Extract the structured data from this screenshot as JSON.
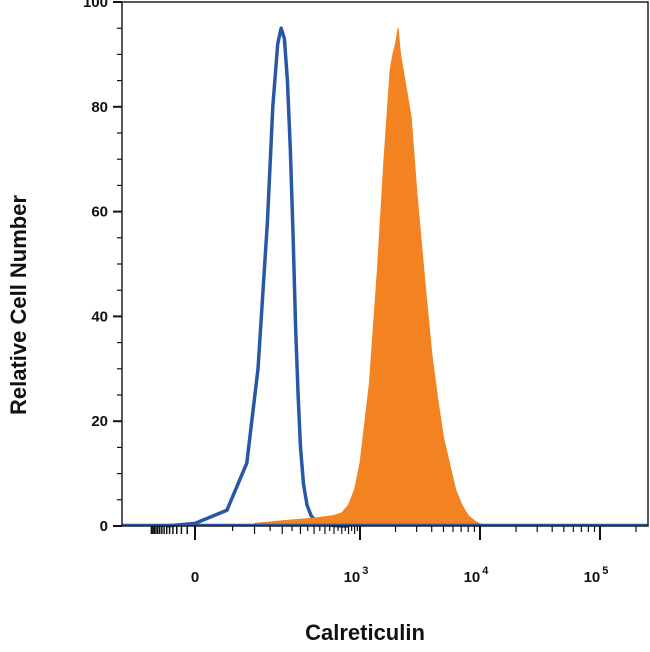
{
  "chart_data": {
    "type": "area",
    "title": "",
    "xlabel": "Calreticulin",
    "ylabel": "Relative Cell Number",
    "x_scale": "biexponential (log with linear region near 0)",
    "xlim": [
      -300,
      200000
    ],
    "ylim": [
      0,
      100
    ],
    "grid": false,
    "legend": "none",
    "x_ticks": [
      {
        "value": 0,
        "label": "0",
        "exp": ""
      },
      {
        "value": 1000,
        "label": "10",
        "exp": "3"
      },
      {
        "value": 10000,
        "label": "10",
        "exp": "4"
      },
      {
        "value": 100000,
        "label": "10",
        "exp": "5"
      }
    ],
    "y_ticks": [
      {
        "value": 0,
        "label": "0"
      },
      {
        "value": 20,
        "label": "20"
      },
      {
        "value": 40,
        "label": "40"
      },
      {
        "value": 60,
        "label": "60"
      },
      {
        "value": 80,
        "label": "80"
      },
      {
        "value": 100,
        "label": "100"
      }
    ],
    "series": [
      {
        "style": "outline",
        "color": "#2857a5",
        "x": [
          -120,
          0,
          40,
          80,
          110,
          140,
          160,
          180,
          195,
          210,
          225,
          240,
          255,
          270,
          285,
          300,
          320,
          345,
          375,
          410,
          460,
          520,
          600,
          700,
          800
        ],
        "y": [
          0,
          0.5,
          3,
          12,
          30,
          58,
          80,
          92,
          95,
          93,
          85,
          72,
          56,
          38,
          25,
          15,
          8,
          4,
          2,
          1,
          0.5,
          0.3,
          0.1,
          0,
          0
        ]
      },
      {
        "style": "filled",
        "color": "#f38320",
        "x": [
          100,
          200,
          400,
          600,
          700,
          800,
          900,
          1000,
          1200,
          1400,
          1600,
          1800,
          1900,
          2000,
          2100,
          2200,
          2400,
          2700,
          3000,
          3500,
          4000,
          4500,
          5000,
          5600,
          6300,
          7100,
          8000,
          9000,
          10000,
          11500
        ],
        "y": [
          0.5,
          1,
          1.5,
          2,
          2.5,
          4,
          7,
          12,
          27,
          48,
          70,
          87,
          90,
          92,
          95,
          90,
          85,
          78,
          64,
          47,
          33,
          24,
          17,
          12,
          7,
          4,
          2,
          1,
          0.4,
          0
        ]
      }
    ]
  }
}
